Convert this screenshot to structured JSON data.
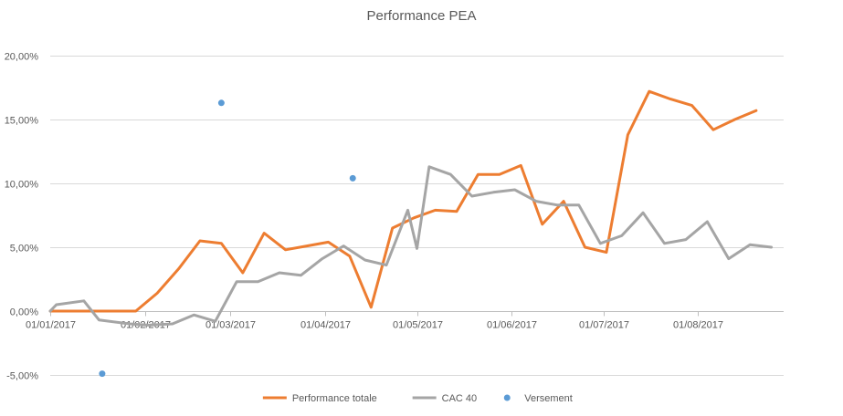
{
  "chart_data": {
    "type": "line",
    "title": "Performance PEA",
    "xlabel": "",
    "ylabel": "",
    "x_ticks": [
      {
        "date": "2017-01-01",
        "label": "01/01/2017"
      },
      {
        "date": "2017-02-01",
        "label": "01/02/2017"
      },
      {
        "date": "2017-03-01",
        "label": "01/03/2017"
      },
      {
        "date": "2017-04-01",
        "label": "01/04/2017"
      },
      {
        "date": "2017-05-01",
        "label": "01/05/2017"
      },
      {
        "date": "2017-06-01",
        "label": "01/06/2017"
      },
      {
        "date": "2017-07-01",
        "label": "01/07/2017"
      },
      {
        "date": "2017-08-01",
        "label": "01/08/2017"
      }
    ],
    "xlim": [
      "2017-01-01",
      "2017-08-29"
    ],
    "y_ticks": [
      {
        "value": -5,
        "label": "-5,00%"
      },
      {
        "value": 0,
        "label": "0,00%"
      },
      {
        "value": 5,
        "label": "5,00%"
      },
      {
        "value": 10,
        "label": "10,00%"
      },
      {
        "value": 15,
        "label": "15,00%"
      },
      {
        "value": 20,
        "label": "20,00%"
      }
    ],
    "ylim": [
      -5,
      20
    ],
    "y_unit": "%",
    "grid": true,
    "legend_position": "bottom",
    "series": [
      {
        "name": "Performance totale",
        "type": "line",
        "color": "#ED7D31",
        "points": [
          {
            "x": "2017-01-01",
            "y": 0.0
          },
          {
            "x": "2017-01-08",
            "y": 0.0
          },
          {
            "x": "2017-01-15",
            "y": 0.0
          },
          {
            "x": "2017-01-22",
            "y": 0.0
          },
          {
            "x": "2017-01-29",
            "y": 0.0
          },
          {
            "x": "2017-02-05",
            "y": 1.4
          },
          {
            "x": "2017-02-12",
            "y": 3.3
          },
          {
            "x": "2017-02-19",
            "y": 5.5
          },
          {
            "x": "2017-02-26",
            "y": 5.3
          },
          {
            "x": "2017-03-05",
            "y": 3.0
          },
          {
            "x": "2017-03-12",
            "y": 6.1
          },
          {
            "x": "2017-03-19",
            "y": 4.8
          },
          {
            "x": "2017-03-26",
            "y": 5.1
          },
          {
            "x": "2017-04-02",
            "y": 5.4
          },
          {
            "x": "2017-04-09",
            "y": 4.3
          },
          {
            "x": "2017-04-16",
            "y": 0.3
          },
          {
            "x": "2017-04-23",
            "y": 6.5
          },
          {
            "x": "2017-04-30",
            "y": 7.3
          },
          {
            "x": "2017-05-07",
            "y": 7.9
          },
          {
            "x": "2017-05-14",
            "y": 7.8
          },
          {
            "x": "2017-05-21",
            "y": 10.7
          },
          {
            "x": "2017-05-28",
            "y": 10.7
          },
          {
            "x": "2017-06-04",
            "y": 11.4
          },
          {
            "x": "2017-06-11",
            "y": 6.8
          },
          {
            "x": "2017-06-18",
            "y": 8.6
          },
          {
            "x": "2017-06-25",
            "y": 5.0
          },
          {
            "x": "2017-07-02",
            "y": 4.6
          },
          {
            "x": "2017-07-09",
            "y": 13.8
          },
          {
            "x": "2017-07-16",
            "y": 17.2
          },
          {
            "x": "2017-07-23",
            "y": 16.6
          },
          {
            "x": "2017-07-30",
            "y": 16.1
          },
          {
            "x": "2017-08-06",
            "y": 14.2
          },
          {
            "x": "2017-08-13",
            "y": 15.0
          },
          {
            "x": "2017-08-20",
            "y": 15.7
          }
        ]
      },
      {
        "name": "CAC 40",
        "type": "line",
        "color": "#A5A5A5",
        "points": [
          {
            "x": "2017-01-01",
            "y": 0.0
          },
          {
            "x": "2017-01-03",
            "y": 0.5
          },
          {
            "x": "2017-01-12",
            "y": 0.8
          },
          {
            "x": "2017-01-17",
            "y": -0.7
          },
          {
            "x": "2017-01-27",
            "y": -1.0
          },
          {
            "x": "2017-02-02",
            "y": -1.1
          },
          {
            "x": "2017-02-10",
            "y": -1.0
          },
          {
            "x": "2017-02-17",
            "y": -0.3
          },
          {
            "x": "2017-02-24",
            "y": -0.8
          },
          {
            "x": "2017-03-03",
            "y": 2.3
          },
          {
            "x": "2017-03-10",
            "y": 2.3
          },
          {
            "x": "2017-03-17",
            "y": 3.0
          },
          {
            "x": "2017-03-24",
            "y": 2.8
          },
          {
            "x": "2017-03-31",
            "y": 4.1
          },
          {
            "x": "2017-04-07",
            "y": 5.1
          },
          {
            "x": "2017-04-14",
            "y": 4.0
          },
          {
            "x": "2017-04-21",
            "y": 3.6
          },
          {
            "x": "2017-04-28",
            "y": 7.9
          },
          {
            "x": "2017-05-01",
            "y": 4.9
          },
          {
            "x": "2017-05-05",
            "y": 11.3
          },
          {
            "x": "2017-05-12",
            "y": 10.7
          },
          {
            "x": "2017-05-19",
            "y": 9.0
          },
          {
            "x": "2017-05-26",
            "y": 9.3
          },
          {
            "x": "2017-06-02",
            "y": 9.5
          },
          {
            "x": "2017-06-09",
            "y": 8.6
          },
          {
            "x": "2017-06-16",
            "y": 8.3
          },
          {
            "x": "2017-06-23",
            "y": 8.3
          },
          {
            "x": "2017-06-30",
            "y": 5.3
          },
          {
            "x": "2017-07-07",
            "y": 5.9
          },
          {
            "x": "2017-07-14",
            "y": 7.7
          },
          {
            "x": "2017-07-21",
            "y": 5.3
          },
          {
            "x": "2017-07-28",
            "y": 5.6
          },
          {
            "x": "2017-08-04",
            "y": 7.0
          },
          {
            "x": "2017-08-11",
            "y": 4.1
          },
          {
            "x": "2017-08-18",
            "y": 5.2
          },
          {
            "x": "2017-08-25",
            "y": 5.0
          }
        ]
      },
      {
        "name": "Versement",
        "type": "scatter",
        "color": "#5B9BD5",
        "points": [
          {
            "x": "2017-01-18",
            "y": -4.9
          },
          {
            "x": "2017-02-26",
            "y": 16.3
          },
          {
            "x": "2017-04-10",
            "y": 10.4
          }
        ]
      }
    ]
  }
}
